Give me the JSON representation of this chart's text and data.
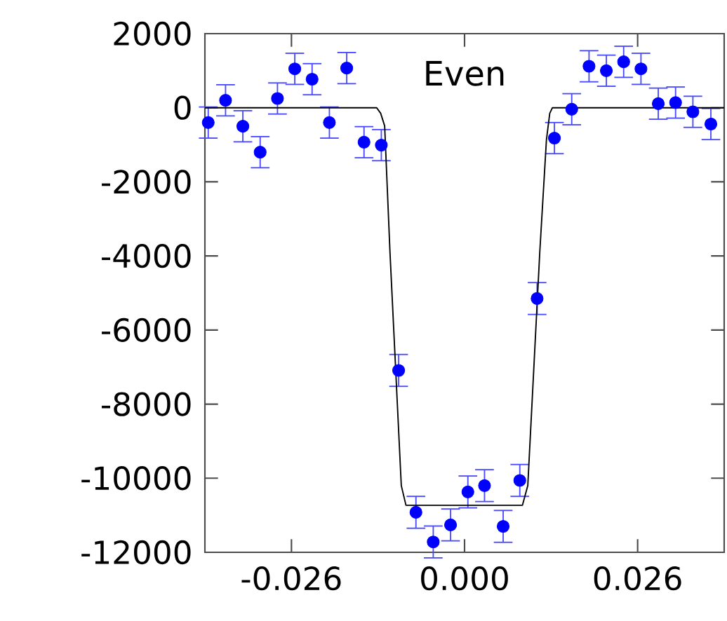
{
  "chart_data": {
    "type": "scatter",
    "annotations": [
      "Even"
    ],
    "xlim": [
      -0.039,
      0.039
    ],
    "ylim": [
      -12000,
      2000
    ],
    "xticks": [
      -0.026,
      {
        "value": 0,
        "label": "0.000"
      },
      0.026
    ],
    "yticks": [
      -12000,
      -10000,
      -8000,
      -6000,
      -4000,
      -2000,
      0,
      2000
    ],
    "grid": false,
    "series": [
      {
        "marker": "circle",
        "color": "#0000ff",
        "x": [
          -0.0385,
          -0.0359,
          -0.0333,
          -0.0307,
          -0.0281,
          -0.0255,
          -0.0229,
          -0.0203,
          -0.0177,
          -0.0151,
          -0.0125,
          -0.0099,
          -0.0073,
          -0.0047,
          -0.0021,
          0.0005,
          0.003,
          0.0058,
          0.0083,
          0.0109,
          0.0135,
          0.0161,
          0.0187,
          0.0213,
          0.0239,
          0.0265,
          0.0291,
          0.0317,
          0.0343,
          0.037
        ],
        "values": [
          -400,
          200,
          -500,
          -1200,
          250,
          1050,
          770,
          -400,
          1070,
          -930,
          -1010,
          -7090,
          -10920,
          -11720,
          -11260,
          -10370,
          -10200,
          -11300,
          -10060,
          -5150,
          -820,
          -40,
          1120,
          1000,
          1240,
          1050,
          110,
          140,
          -110,
          -440
        ],
        "errors": [
          420,
          420,
          420,
          420,
          420,
          420,
          420,
          420,
          420,
          420,
          420,
          430,
          430,
          430,
          430,
          430,
          430,
          430,
          430,
          430,
          420,
          420,
          420,
          420,
          420,
          420,
          420,
          420,
          420,
          420
        ]
      },
      {
        "type": "line",
        "color": "#000000",
        "x": [
          -0.039,
          -0.0132,
          -0.0126,
          -0.012,
          -0.0112,
          -0.0095,
          -0.0088,
          0.0087,
          0.0095,
          0.0113,
          0.0123,
          0.0128,
          0.0132,
          0.039
        ],
        "values": [
          0,
          0,
          -150,
          -490,
          -3900,
          -10200,
          -10730,
          -10730,
          -10200,
          -3900,
          -870,
          -150,
          0,
          0
        ]
      }
    ]
  }
}
